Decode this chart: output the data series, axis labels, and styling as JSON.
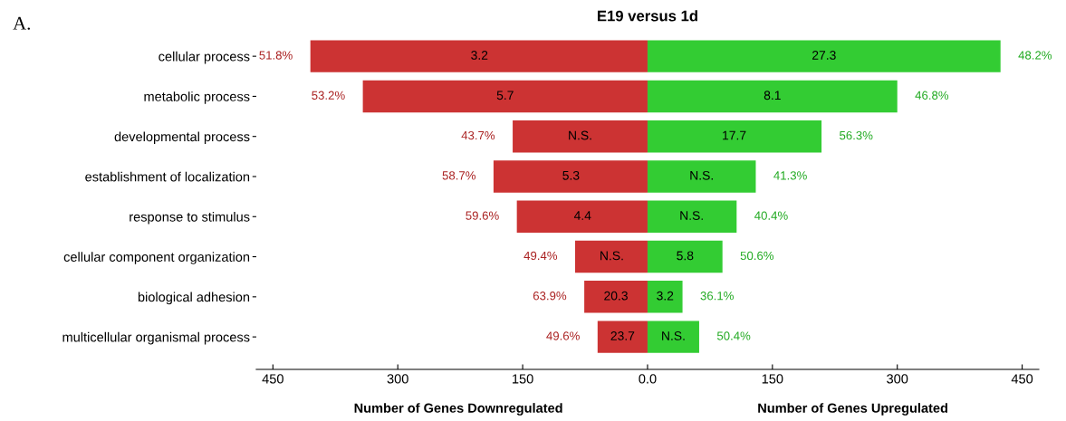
{
  "chart_data": {
    "type": "bar",
    "orientation": "horizontal",
    "stacked": true,
    "title": "E19 versus 1d",
    "categories": [
      "cellular process",
      "metabolic process",
      "developmental process",
      "establishment of localization",
      "response to stimulus",
      "cellular component organization",
      "biological adhesion",
      "multicellular organismal process"
    ],
    "series": [
      {
        "color": "#cc3333",
        "values": [
          -405,
          -342,
          -162,
          -185,
          -157,
          -87,
          -76,
          -60
        ]
      },
      {
        "color": "#33cc33",
        "values": [
          424,
          300,
          209,
          130,
          107,
          90,
          42,
          62
        ]
      }
    ],
    "xlim": [
      -470,
      470
    ],
    "xticks": [
      {
        "value": -450,
        "label": "450"
      },
      {
        "value": -300,
        "label": "300"
      },
      {
        "value": -150,
        "label": "150"
      },
      {
        "value": 0,
        "label": "0.0"
      },
      150,
      300,
      450
    ],
    "grid": false,
    "annotations": [
      "A.",
      "Number of Genes Downregulated",
      "Number of Genes Upregulated",
      {
        "text": "51.8%",
        "x": -405,
        "y": "cellular process"
      },
      {
        "text": "53.2%",
        "x": -342,
        "y": "metabolic process"
      },
      {
        "text": "43.7%",
        "x": -162,
        "y": "developmental process"
      },
      {
        "text": "58.7%",
        "x": -185,
        "y": "establishment of localization"
      },
      {
        "text": "59.6%",
        "x": -157,
        "y": "response to stimulus"
      },
      {
        "text": "49.4%",
        "x": -87,
        "y": "cellular component organization"
      },
      {
        "text": "63.9%",
        "x": -76,
        "y": "biological adhesion"
      },
      {
        "text": "49.6%",
        "x": -60,
        "y": "multicellular organismal process"
      },
      {
        "text": "48.2%",
        "x": 424,
        "y": "cellular process"
      },
      {
        "text": "46.8%",
        "x": 300,
        "y": "metabolic process"
      },
      {
        "text": "56.3%",
        "x": 209,
        "y": "developmental process"
      },
      {
        "text": "41.3%",
        "x": 130,
        "y": "establishment of localization"
      },
      {
        "text": "40.4%",
        "x": 107,
        "y": "response to stimulus"
      },
      {
        "text": "50.6%",
        "x": 90,
        "y": "cellular component organization"
      },
      {
        "text": "36.1%",
        "x": 42,
        "y": "biological adhesion"
      },
      {
        "text": "50.4%",
        "x": 62,
        "y": "multicellular organismal process"
      },
      {
        "text": "3.2",
        "x": -202,
        "y": "cellular process"
      },
      {
        "text": "5.7",
        "x": -171,
        "y": "metabolic process"
      },
      {
        "text": "N.S.",
        "x": -81,
        "y": "developmental process"
      },
      {
        "text": "5.3",
        "x": -92,
        "y": "establishment of localization"
      },
      {
        "text": "4.4",
        "x": -78,
        "y": "response to stimulus"
      },
      {
        "text": "N.S.",
        "x": -43,
        "y": "cellular component organization"
      },
      {
        "text": "20.3",
        "x": -38,
        "y": "biological adhesion"
      },
      {
        "text": "23.7",
        "x": -30,
        "y": "multicellular organismal process"
      },
      {
        "text": "27.3",
        "x": 212,
        "y": "cellular process"
      },
      {
        "text": "8.1",
        "x": 150,
        "y": "metabolic process"
      },
      {
        "text": "17.7",
        "x": 104,
        "y": "developmental process"
      },
      {
        "text": "N.S.",
        "x": 65,
        "y": "establishment of localization"
      },
      {
        "text": "N.S.",
        "x": 53,
        "y": "response to stimulus"
      },
      {
        "text": "5.8",
        "x": 45,
        "y": "cellular component organization"
      },
      {
        "text": "3.2",
        "x": 21,
        "y": "biological adhesion"
      },
      {
        "text": "N.S.",
        "x": 31,
        "y": "multicellular organismal process"
      }
    ]
  }
}
